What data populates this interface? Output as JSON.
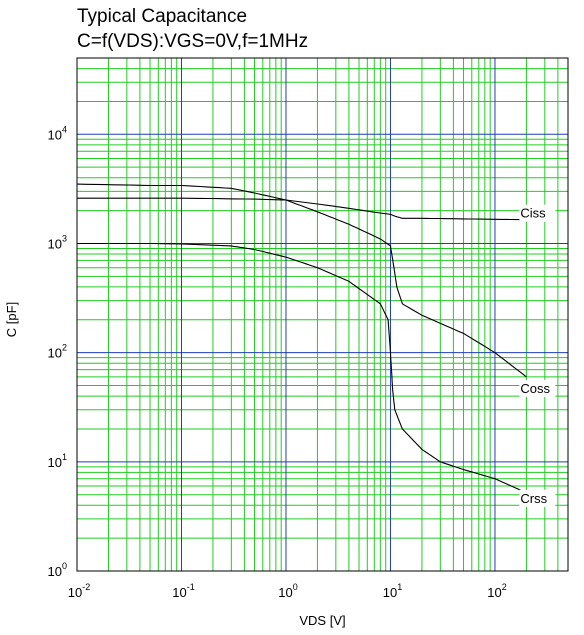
{
  "chart_data": {
    "type": "line",
    "title": "Typical Capacitance",
    "subtitle": "C=f(VDS):VGS=0V,f=1MHz",
    "xlabel": "VDS [V]",
    "ylabel": "C [pF]",
    "xscale": "log",
    "yscale": "log",
    "xlim": [
      0.01,
      500
    ],
    "ylim": [
      1,
      50000
    ],
    "grid": true,
    "colors": {
      "grid_minor": "#22cc22",
      "grid_major": "#1f3dbf",
      "curve": "#000000",
      "frame": "#000000"
    },
    "x_ticks": [
      {
        "value": 0.01,
        "base": "10",
        "exp": "-2"
      },
      {
        "value": 0.1,
        "base": "10",
        "exp": "-1"
      },
      {
        "value": 1,
        "base": "10",
        "exp": "0"
      },
      {
        "value": 10,
        "base": "10",
        "exp": "1"
      },
      {
        "value": 100,
        "base": "10",
        "exp": "2"
      }
    ],
    "y_ticks": [
      {
        "value": 1,
        "base": "10",
        "exp": "0"
      },
      {
        "value": 10,
        "base": "10",
        "exp": "1"
      },
      {
        "value": 100,
        "base": "10",
        "exp": "2"
      },
      {
        "value": 1000,
        "base": "10",
        "exp": "3"
      },
      {
        "value": 10000,
        "base": "10",
        "exp": "4"
      }
    ],
    "series": [
      {
        "name": "Ciss",
        "label": "Ciss",
        "points": [
          [
            0.01,
            2600
          ],
          [
            0.1,
            2600
          ],
          [
            0.5,
            2550
          ],
          [
            1,
            2500
          ],
          [
            2,
            2300
          ],
          [
            4,
            2100
          ],
          [
            8,
            1900
          ],
          [
            10,
            1850
          ],
          [
            11,
            1780
          ],
          [
            13,
            1700
          ],
          [
            20,
            1700
          ],
          [
            50,
            1680
          ],
          [
            200,
            1650
          ]
        ]
      },
      {
        "name": "Coss",
        "label": "Coss",
        "points": [
          [
            0.01,
            3500
          ],
          [
            0.05,
            3400
          ],
          [
            0.1,
            3400
          ],
          [
            0.3,
            3200
          ],
          [
            0.5,
            2900
          ],
          [
            1,
            2500
          ],
          [
            2,
            1950
          ],
          [
            4,
            1500
          ],
          [
            8,
            1100
          ],
          [
            10,
            950
          ],
          [
            10.8,
            600
          ],
          [
            11.5,
            400
          ],
          [
            13,
            280
          ],
          [
            20,
            220
          ],
          [
            50,
            150
          ],
          [
            100,
            100
          ],
          [
            200,
            60
          ]
        ]
      },
      {
        "name": "Crss",
        "label": "Crss",
        "points": [
          [
            0.01,
            1000
          ],
          [
            0.05,
            1000
          ],
          [
            0.1,
            990
          ],
          [
            0.3,
            950
          ],
          [
            0.5,
            880
          ],
          [
            1,
            750
          ],
          [
            2,
            600
          ],
          [
            4,
            450
          ],
          [
            8,
            280
          ],
          [
            9.5,
            200
          ],
          [
            10,
            100
          ],
          [
            10.5,
            45
          ],
          [
            11,
            30
          ],
          [
            13,
            20
          ],
          [
            20,
            13
          ],
          [
            30,
            10
          ],
          [
            50,
            8.5
          ],
          [
            100,
            7
          ],
          [
            200,
            5.2
          ]
        ]
      }
    ]
  }
}
